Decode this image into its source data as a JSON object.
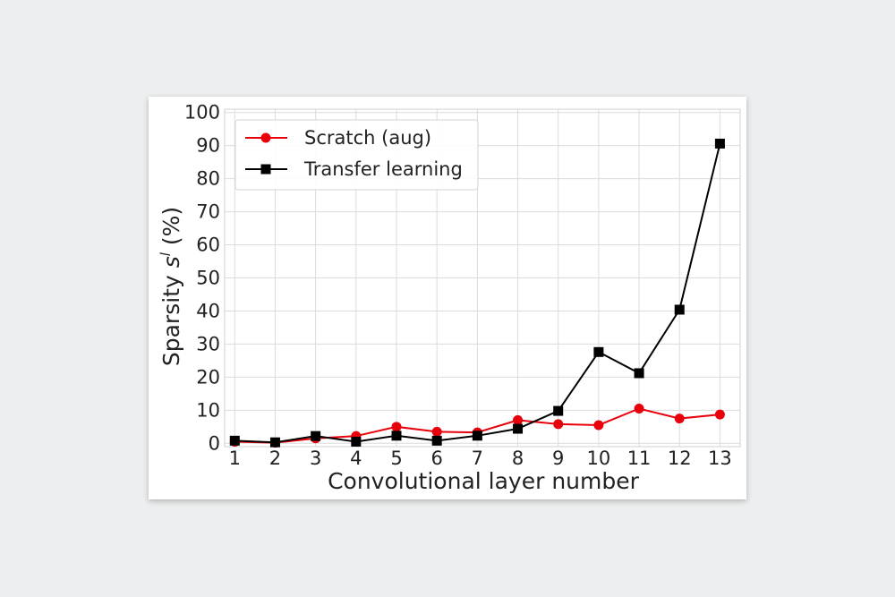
{
  "chart_data": {
    "type": "line",
    "title": "",
    "xlabel": "Convolutional layer number",
    "ylabel": "Sparsity s^l (%)",
    "ylabel_parts": {
      "prefix": "Sparsity ",
      "symbol": "s",
      "sup": "l",
      "suffix": " (%)"
    },
    "x": [
      1,
      2,
      3,
      4,
      5,
      6,
      7,
      8,
      9,
      10,
      11,
      12,
      13
    ],
    "xlim": [
      0.75,
      13.5
    ],
    "ylim": [
      -1,
      101
    ],
    "yticks": [
      0,
      10,
      20,
      30,
      40,
      50,
      60,
      70,
      80,
      90,
      100
    ],
    "grid": true,
    "legend_position": "top-left",
    "series": [
      {
        "name": "Scratch (aug)",
        "color": "#e8000b",
        "marker": "circle",
        "values": [
          0.5,
          0.2,
          1.5,
          2.2,
          5.0,
          3.5,
          3.3,
          7.0,
          5.8,
          5.5,
          10.5,
          7.5,
          8.7
        ]
      },
      {
        "name": "Transfer learning",
        "color": "#000000",
        "marker": "square",
        "values": [
          0.8,
          0.3,
          2.2,
          0.5,
          2.3,
          0.8,
          2.3,
          4.4,
          9.8,
          27.6,
          21.2,
          40.4,
          90.6
        ]
      }
    ]
  }
}
